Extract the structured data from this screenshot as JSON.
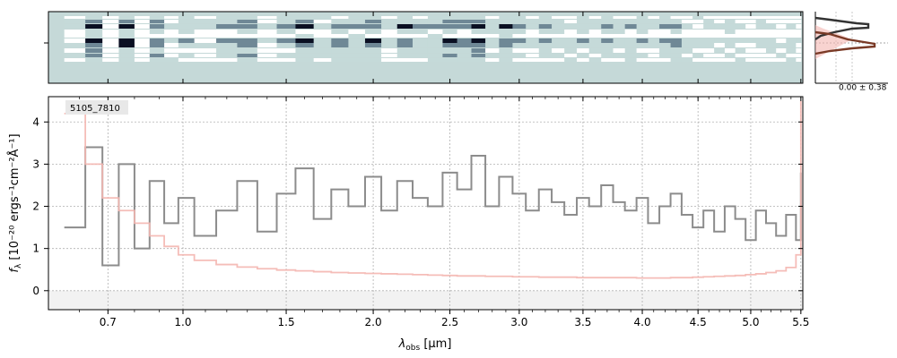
{
  "chart_data": {
    "type": "line",
    "object_label": "5105_7810",
    "xlabel": "λ",
    "xlabel_sub": "obs",
    "xlabel_unit": " [μm]",
    "ylabel": "f",
    "ylabel_sub": "λ",
    "ylabel_unit": " [10⁻²⁰ ergs⁻¹cm⁻²Å⁻¹]",
    "xlim": [
      0.5,
      5.52
    ],
    "ylim": [
      -0.45,
      4.6
    ],
    "x_axis_scale": "sqrt-like (non-linear, compressed at long wavelengths)",
    "xticks": [
      {
        "value": 0.7,
        "label": "0.7"
      },
      {
        "value": 1.0,
        "label": "1.0"
      },
      {
        "value": 1.5,
        "label": "1.5"
      },
      {
        "value": 2.0,
        "label": "2.0"
      },
      {
        "value": 2.5,
        "label": "2.5"
      },
      {
        "value": 3.0,
        "label": "3.0"
      },
      {
        "value": 3.5,
        "label": "3.5"
      },
      {
        "value": 4.0,
        "label": "4.0"
      },
      {
        "value": 4.5,
        "label": "4.5"
      },
      {
        "value": 5.0,
        "label": "5.0"
      },
      {
        "value": 5.5,
        "label": "5.5"
      }
    ],
    "yticks": [
      {
        "value": 0,
        "label": "0"
      },
      {
        "value": 1,
        "label": "1"
      },
      {
        "value": 2,
        "label": "2"
      },
      {
        "value": 3,
        "label": "3"
      },
      {
        "value": 4,
        "label": "4"
      }
    ],
    "grid": true,
    "series": [
      {
        "color": "#8c8c8c",
        "style": "steps",
        "x": [
          0.55,
          0.62,
          0.68,
          0.74,
          0.8,
          0.86,
          0.92,
          0.98,
          1.05,
          1.15,
          1.25,
          1.35,
          1.45,
          1.55,
          1.65,
          1.75,
          1.85,
          1.95,
          2.05,
          2.15,
          2.25,
          2.35,
          2.45,
          2.55,
          2.65,
          2.75,
          2.85,
          2.95,
          3.05,
          3.15,
          3.25,
          3.35,
          3.45,
          3.55,
          3.65,
          3.75,
          3.85,
          3.95,
          4.05,
          4.15,
          4.25,
          4.35,
          4.45,
          4.55,
          4.65,
          4.75,
          4.85,
          4.95,
          5.05,
          5.15,
          5.25,
          5.35,
          5.45,
          5.5
        ],
        "y": [
          1.5,
          3.4,
          0.6,
          3.0,
          1.0,
          2.6,
          1.6,
          2.2,
          1.3,
          1.9,
          2.6,
          1.4,
          2.3,
          2.9,
          1.7,
          2.4,
          2.0,
          2.7,
          1.9,
          2.6,
          2.2,
          2.0,
          2.8,
          2.4,
          3.2,
          2.0,
          2.7,
          2.3,
          1.9,
          2.4,
          2.1,
          1.8,
          2.2,
          2.0,
          2.5,
          2.1,
          1.9,
          2.2,
          1.6,
          2.0,
          2.3,
          1.8,
          1.5,
          1.9,
          1.4,
          2.0,
          1.7,
          1.2,
          1.9,
          1.6,
          1.3,
          1.8,
          1.2,
          2.8
        ]
      },
      {
        "color": "#f4b6b0",
        "style": "steps",
        "x": [
          0.55,
          0.62,
          0.68,
          0.74,
          0.8,
          0.86,
          0.92,
          0.98,
          1.05,
          1.15,
          1.25,
          1.35,
          1.45,
          1.55,
          1.65,
          1.75,
          1.85,
          1.95,
          2.05,
          2.15,
          2.25,
          2.35,
          2.45,
          2.55,
          2.65,
          2.75,
          2.85,
          2.95,
          3.05,
          3.15,
          3.25,
          3.35,
          3.45,
          3.55,
          3.65,
          3.75,
          3.85,
          3.95,
          4.05,
          4.15,
          4.25,
          4.35,
          4.45,
          4.55,
          4.65,
          4.75,
          4.85,
          4.95,
          5.05,
          5.15,
          5.25,
          5.35,
          5.45,
          5.5
        ],
        "y": [
          4.2,
          3.0,
          2.2,
          1.9,
          1.6,
          1.3,
          1.05,
          0.85,
          0.72,
          0.62,
          0.56,
          0.52,
          0.49,
          0.47,
          0.45,
          0.43,
          0.42,
          0.41,
          0.4,
          0.39,
          0.38,
          0.37,
          0.36,
          0.35,
          0.35,
          0.34,
          0.34,
          0.33,
          0.33,
          0.32,
          0.32,
          0.32,
          0.31,
          0.31,
          0.31,
          0.31,
          0.31,
          0.3,
          0.3,
          0.3,
          0.31,
          0.31,
          0.32,
          0.33,
          0.34,
          0.35,
          0.36,
          0.38,
          0.4,
          0.43,
          0.47,
          0.55,
          0.85,
          4.5
        ]
      }
    ],
    "twod_panel": {
      "type": "heatmap",
      "colormap": [
        "#ffffff",
        "#c5dad9",
        "#6f8896",
        "#0a0f22"
      ],
      "background_color": "#c5d9d8"
    },
    "profile_panel": {
      "label": "0.00 ± 0.38",
      "colors": [
        "#333333",
        "#7a3a26",
        "#f4b6b0"
      ]
    }
  }
}
